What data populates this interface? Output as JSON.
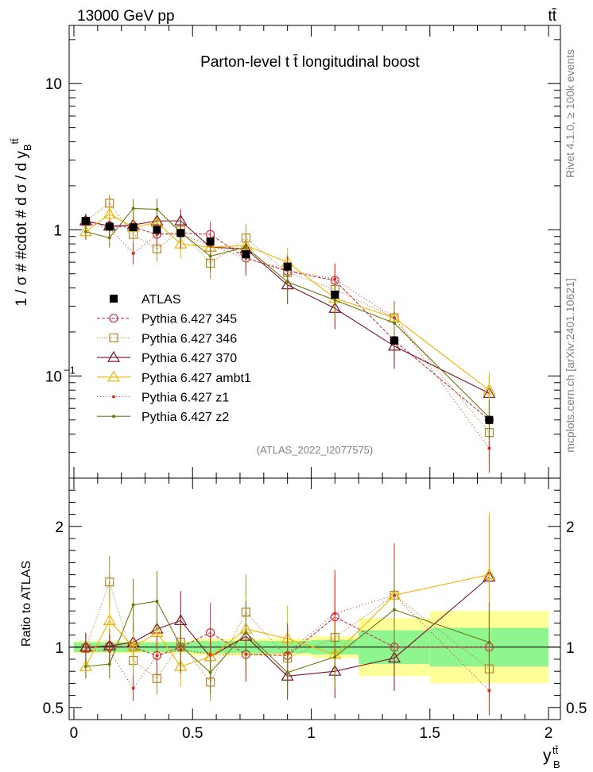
{
  "header": {
    "energy_label": "13000 GeV pp",
    "process_label": "tt̄",
    "plot_title": "Parton-level t t̄ longitudinal boost",
    "analysis_id": "(ATLAS_2022_I2077575)",
    "rivet_label": "Rivet 4.1.0, ≥ 100k events",
    "mcplots_label": "mcplots.cern.ch [arXiv:2401.10621]"
  },
  "chart_data": {
    "type": "line",
    "title": "Parton-level t t̄ longitudinal boost",
    "xlabel": "y_B^{tt̄}",
    "ylabel_main": "1 / σ # #cdot # d σ / d y_B^{tt̄}",
    "ylabel_ratio": "Ratio to ATLAS",
    "xlim": [
      -0.02,
      2.05
    ],
    "ylim_main": [
      0.02,
      25
    ],
    "ylim_ratio": [
      0.4,
      2.4
    ],
    "yscale_main": "log",
    "main_ticks": [
      "10^{-1}",
      "1",
      "10"
    ],
    "ratio_ticks": [
      "0.5",
      "1",
      "2"
    ],
    "x_ticks": [
      "0",
      "0.5",
      "1",
      "1.5",
      "2"
    ],
    "bin_edges": [
      0,
      0.1,
      0.2,
      0.3,
      0.4,
      0.5,
      0.65,
      0.8,
      1.0,
      1.2,
      1.5,
      2.0
    ],
    "x": [
      0.05,
      0.15,
      0.25,
      0.35,
      0.45,
      0.575,
      0.725,
      0.9,
      1.1,
      1.35,
      1.75
    ],
    "reference": {
      "name": "ATLAS",
      "values": [
        1.15,
        1.05,
        1.04,
        1.0,
        0.95,
        0.83,
        0.68,
        0.56,
        0.36,
        0.175,
        0.05
      ],
      "ratio_stat_band": [
        0.04,
        0.04,
        0.04,
        0.04,
        0.04,
        0.05,
        0.05,
        0.05,
        0.06,
        0.14,
        0.16
      ],
      "ratio_total_band": [
        0.05,
        0.05,
        0.05,
        0.05,
        0.05,
        0.07,
        0.07,
        0.07,
        0.09,
        0.24,
        0.3
      ]
    },
    "series": [
      {
        "name": "Pythia 6.427 345",
        "color": "#c0384a",
        "marker": "circle",
        "dash": "4,2",
        "values": [
          1.14,
          1.06,
          1.04,
          0.93,
          0.95,
          0.93,
          0.64,
          0.52,
          0.45,
          0.175,
          0.05
        ],
        "ratio": [
          0.99,
          1.01,
          1.0,
          0.93,
          1.0,
          1.12,
          0.94,
          0.93,
          1.25,
          1.0,
          1.0
        ]
      },
      {
        "name": "Pythia 6.427 346",
        "color": "#b8862b",
        "marker": "square",
        "dash": "1,2",
        "values": [
          1.14,
          1.52,
          0.93,
          0.74,
          0.99,
          0.59,
          0.88,
          0.51,
          0.39,
          0.25,
          0.041
        ],
        "ratio": [
          0.99,
          1.54,
          0.89,
          0.74,
          1.04,
          0.71,
          1.29,
          0.91,
          1.08,
          1.43,
          0.82
        ]
      },
      {
        "name": "Pythia 6.427 370",
        "color": "#7d1228",
        "marker": "triangle",
        "dash": "",
        "values": [
          1.15,
          1.06,
          1.08,
          1.15,
          1.15,
          0.76,
          0.74,
          0.42,
          0.29,
          0.16,
          0.076
        ],
        "ratio": [
          1.0,
          1.01,
          1.04,
          1.15,
          1.22,
          0.92,
          1.09,
          0.76,
          0.8,
          0.91,
          1.58
        ]
      },
      {
        "name": "Pythia 6.427 ambt1",
        "color": "#f0b400",
        "marker": "triangle",
        "dash": "",
        "values": [
          0.97,
          1.28,
          1.04,
          1.12,
          0.8,
          0.76,
          0.78,
          0.6,
          0.34,
          0.25,
          0.08
        ],
        "ratio": [
          0.84,
          1.22,
          1.0,
          1.12,
          0.84,
          0.92,
          1.15,
          1.07,
          0.94,
          1.43,
          1.6
        ]
      },
      {
        "name": "Pythia 6.427 z1",
        "color": "#d52f20",
        "marker": "dot",
        "dash": "1,3",
        "values": [
          1.12,
          1.02,
          0.69,
          0.93,
          0.93,
          0.78,
          0.64,
          0.53,
          0.46,
          0.25,
          0.032
        ],
        "ratio": [
          0.97,
          0.97,
          0.66,
          0.93,
          0.98,
          0.94,
          0.94,
          0.95,
          1.28,
          1.43,
          0.64
        ]
      },
      {
        "name": "Pythia 6.427 z2",
        "color": "#707a10",
        "marker": "dot",
        "dash": "",
        "values": [
          0.97,
          0.88,
          1.4,
          1.38,
          0.96,
          0.66,
          0.76,
          0.44,
          0.33,
          0.23,
          0.052
        ],
        "ratio": [
          0.84,
          0.86,
          1.35,
          1.38,
          1.01,
          0.79,
          1.12,
          0.79,
          0.92,
          1.31,
          1.04
        ]
      }
    ]
  }
}
